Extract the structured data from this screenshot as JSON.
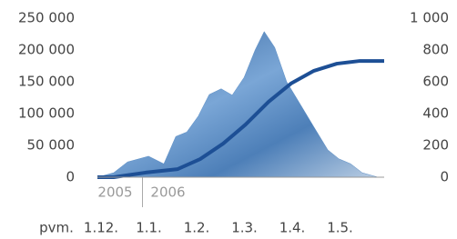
{
  "chart_data": {
    "type": "area",
    "x_label": "pvm.",
    "years": [
      "2005",
      "2006"
    ],
    "xlim": [
      0,
      6
    ],
    "xticks": [
      {
        "value": 0,
        "label": "1.12."
      },
      {
        "value": 1,
        "label": "1.1."
      },
      {
        "value": 2,
        "label": "1.2."
      },
      {
        "value": 3,
        "label": "1.3."
      },
      {
        "value": 4,
        "label": "1.4."
      },
      {
        "value": 5,
        "label": "1.5."
      }
    ],
    "ylim": [
      0,
      250000
    ],
    "yticks": [
      0,
      {
        "value": 50000,
        "label": "50 000"
      },
      {
        "value": 100000,
        "label": "100 000"
      },
      {
        "value": 150000,
        "label": "150 000"
      },
      {
        "value": 200000,
        "label": "200 000"
      },
      {
        "value": 250000,
        "label": "250 000"
      }
    ],
    "y2lim": [
      0,
      1000
    ],
    "y2ticks": [
      0,
      200,
      400,
      600,
      800,
      {
        "value": 1000,
        "label": "1 000"
      }
    ],
    "series": [
      {
        "type": "area",
        "color": "#5d8fc6",
        "x": [
          0,
          0.34,
          0.63,
          1.07,
          1.39,
          1.64,
          1.87,
          2.11,
          2.34,
          2.59,
          2.82,
          3.07,
          3.3,
          3.49,
          3.71,
          3.96,
          4.25,
          4.53,
          4.82,
          5.05,
          5.3,
          5.54,
          5.87
        ],
        "values": [
          0,
          7000,
          24000,
          33000,
          21000,
          64000,
          71000,
          96000,
          130000,
          139000,
          129000,
          157000,
          200000,
          229000,
          204000,
          150000,
          114000,
          79000,
          43000,
          29000,
          21000,
          7000,
          0
        ]
      },
      {
        "type": "line",
        "axis": "y2",
        "color": "#1d4f95",
        "x": [
          0,
          0.34,
          1.01,
          1.68,
          2.15,
          2.63,
          3.1,
          3.58,
          4.05,
          4.53,
          5.01,
          5.49,
          6
        ],
        "values": [
          0,
          0,
          29,
          51,
          114,
          211,
          331,
          474,
          589,
          669,
          714,
          731,
          731
        ]
      }
    ]
  }
}
